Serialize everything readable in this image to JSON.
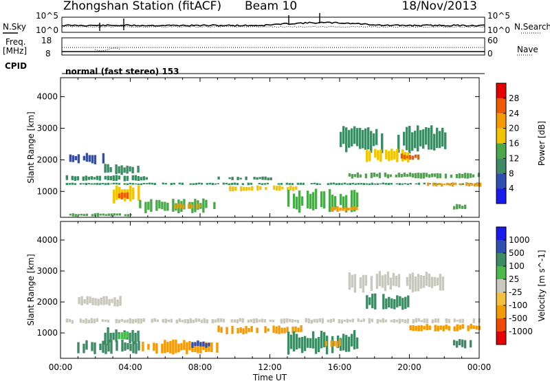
{
  "header": {
    "title": "Zhongshan Station (fitACF)",
    "beam": "Beam 10",
    "date": "18/Nov/2013"
  },
  "strips": {
    "nsky_label": "N.Sky",
    "nsearch_label": "N.Search",
    "nsky_ticks": [
      "10^5",
      "10^0"
    ],
    "nsearch_ticks": [
      "10^5",
      "10^0"
    ],
    "freq_label": "Freq.",
    "freq_unit": "[MHz]",
    "freq_ticks": [
      "18",
      "8"
    ],
    "nave_label": "Nave",
    "nave_ticks": [
      "60",
      "0"
    ],
    "cpid_label": "CPID",
    "cpid_text": "normal (fast stereo) 153"
  },
  "chart_data": [
    {
      "type": "heatmap",
      "quantity": "power",
      "ylabel": "Slant Range [km]",
      "xlabel": "",
      "xlim": [
        0,
        24
      ],
      "ylim": [
        180,
        4600
      ],
      "y_ticks": [
        "1000",
        "2000",
        "3000",
        "4000"
      ],
      "x_ticks": [],
      "colorbar": {
        "label": "Power [dB]",
        "ticks": [
          "28",
          "24",
          "20",
          "16",
          "12",
          "8",
          "4"
        ],
        "levels": [
          0,
          4,
          8,
          12,
          16,
          20,
          24,
          28,
          30
        ],
        "colors": [
          "#1a1aee",
          "#2c4fb0",
          "#3e8a64",
          "#4aa74a",
          "#f2c400",
          "#f59a00",
          "#ee5a00",
          "#e60000"
        ]
      },
      "regions": [
        {
          "t": [
            0.3,
            24.0
          ],
          "r": [
            1200,
            1280
          ],
          "value": 10
        },
        {
          "t": [
            0.3,
            5.0
          ],
          "r": [
            1320,
            1520
          ],
          "value": 8
        },
        {
          "t": [
            0.5,
            2.5
          ],
          "r": [
            1850,
            2250
          ],
          "value": 6
        },
        {
          "t": [
            2.5,
            4.5
          ],
          "r": [
            1500,
            1900
          ],
          "value": 8
        },
        {
          "t": [
            3.0,
            4.5
          ],
          "r": [
            600,
            1200
          ],
          "value": 18
        },
        {
          "t": [
            3.3,
            3.9
          ],
          "r": [
            700,
            1050
          ],
          "value": 27
        },
        {
          "t": [
            0.5,
            4.0
          ],
          "r": [
            200,
            320
          ],
          "value": 12
        },
        {
          "t": [
            4.5,
            9.0
          ],
          "r": [
            300,
            800
          ],
          "value": 12
        },
        {
          "t": [
            6.5,
            8.0
          ],
          "r": [
            450,
            650
          ],
          "value": 20
        },
        {
          "t": [
            9.5,
            13.5
          ],
          "r": [
            1000,
            1200
          ],
          "value": 16
        },
        {
          "t": [
            9.0,
            12.0
          ],
          "r": [
            1350,
            1480
          ],
          "value": 9
        },
        {
          "t": [
            13.0,
            17.0
          ],
          "r": [
            300,
            1100
          ],
          "value": 12
        },
        {
          "t": [
            15.5,
            17.0
          ],
          "r": [
            350,
            550
          ],
          "value": 20
        },
        {
          "t": [
            16.0,
            22.0
          ],
          "r": [
            2200,
            3100
          ],
          "value": 8
        },
        {
          "t": [
            17.5,
            20.0
          ],
          "r": [
            1900,
            2400
          ],
          "value": 16
        },
        {
          "t": [
            19.5,
            20.5
          ],
          "r": [
            2000,
            2200
          ],
          "value": 24
        },
        {
          "t": [
            16.5,
            24.0
          ],
          "r": [
            1400,
            1600
          ],
          "value": 14
        },
        {
          "t": [
            21.0,
            24.0
          ],
          "r": [
            1150,
            1300
          ],
          "value": 20
        },
        {
          "t": [
            22.5,
            23.5
          ],
          "r": [
            400,
            600
          ],
          "value": 12
        }
      ]
    },
    {
      "type": "heatmap",
      "quantity": "velocity",
      "ylabel": "Slant Range [km]",
      "xlabel": "Time UT",
      "xlim": [
        0,
        24
      ],
      "ylim": [
        180,
        4600
      ],
      "y_ticks": [
        "1000",
        "2000",
        "3000",
        "4000"
      ],
      "x_ticks": [
        "00:00",
        "04:00",
        "08:00",
        "12:00",
        "16:00",
        "20:00",
        "00:00"
      ],
      "colorbar": {
        "label": "Velocity [m s^-1]",
        "ticks": [
          "1000",
          "500",
          "100",
          "25",
          "-25",
          "-100",
          "-500",
          "-1000"
        ],
        "levels": [
          -1200,
          -1000,
          -500,
          -100,
          -25,
          25,
          100,
          500,
          1000,
          1200
        ],
        "colors": [
          "#e60000",
          "#f04a00",
          "#f59a00",
          "#f5c040",
          "#c8c8bd",
          "#4db84d",
          "#3e8a64",
          "#2c4fb0",
          "#1a1aee"
        ]
      },
      "regions": [
        {
          "t": [
            0.3,
            24.0
          ],
          "r": [
            1300,
            1480
          ],
          "value": 0
        },
        {
          "t": [
            1.0,
            3.5
          ],
          "r": [
            1850,
            2200
          ],
          "value": 0
        },
        {
          "t": [
            2.5,
            4.5
          ],
          "r": [
            600,
            1200
          ],
          "value": 200
        },
        {
          "t": [
            3.3,
            3.9
          ],
          "r": [
            800,
            1050
          ],
          "value": 60
        },
        {
          "t": [
            0.8,
            4.5
          ],
          "r": [
            300,
            800
          ],
          "value": 200
        },
        {
          "t": [
            4.5,
            9.0
          ],
          "r": [
            300,
            800
          ],
          "value": -200
        },
        {
          "t": [
            7.5,
            8.5
          ],
          "r": [
            500,
            750
          ],
          "value": 600
        },
        {
          "t": [
            9.0,
            14.0
          ],
          "r": [
            950,
            1250
          ],
          "value": -200
        },
        {
          "t": [
            13.0,
            17.0
          ],
          "r": [
            300,
            1100
          ],
          "value": 200
        },
        {
          "t": [
            15.0,
            16.0
          ],
          "r": [
            500,
            800
          ],
          "value": -200
        },
        {
          "t": [
            16.5,
            22.0
          ],
          "r": [
            2300,
            3000
          ],
          "value": 0
        },
        {
          "t": [
            17.5,
            20.0
          ],
          "r": [
            1700,
            2300
          ],
          "value": 200
        },
        {
          "t": [
            20.0,
            24.0
          ],
          "r": [
            1050,
            1300
          ],
          "value": -200
        },
        {
          "t": [
            22.5,
            23.5
          ],
          "r": [
            500,
            800
          ],
          "value": 200
        }
      ]
    }
  ]
}
